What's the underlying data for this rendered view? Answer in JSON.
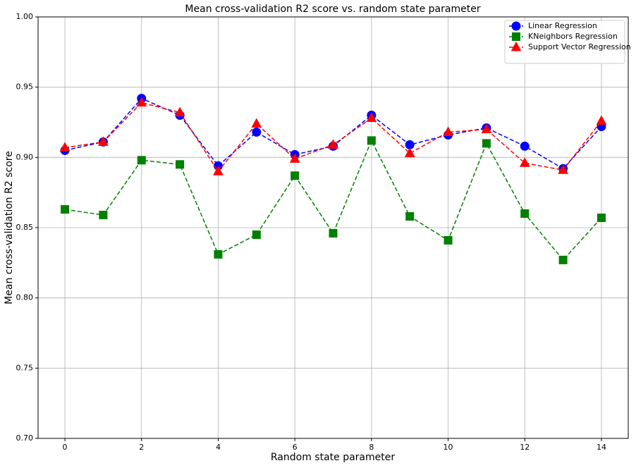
{
  "chart_data": {
    "type": "line",
    "title": "Mean cross-validation R2 score vs. random state parameter",
    "x_label": "Random state parameter",
    "y_label": "Mean cross-validation R2 score",
    "x": [
      0,
      1,
      2,
      3,
      4,
      5,
      6,
      7,
      8,
      9,
      10,
      11,
      12,
      13,
      14
    ],
    "series": [
      {
        "name": "Linear Regression",
        "color": "#0000ff",
        "marker": "circle",
        "values": [
          0.905,
          0.911,
          0.942,
          0.93,
          0.894,
          0.918,
          0.902,
          0.908,
          0.93,
          0.909,
          0.916,
          0.921,
          0.908,
          0.892,
          0.922
        ]
      },
      {
        "name": "KNeighbors Regression",
        "color": "#008000",
        "marker": "square",
        "values": [
          0.863,
          0.859,
          0.898,
          0.895,
          0.831,
          0.845,
          0.887,
          0.846,
          0.912,
          0.858,
          0.841,
          0.91,
          0.86,
          0.827,
          0.857
        ]
      },
      {
        "name": "Support Vector Regression",
        "color": "#ff0000",
        "marker": "triangle",
        "values": [
          0.907,
          0.911,
          0.939,
          0.932,
          0.89,
          0.924,
          0.899,
          0.909,
          0.928,
          0.903,
          0.918,
          0.92,
          0.896,
          0.891,
          0.926
        ]
      }
    ],
    "xlim": [
      -0.7,
      14.7
    ],
    "xticks": [
      0,
      2,
      4,
      6,
      8,
      10,
      12,
      14
    ],
    "ylim": [
      0.7,
      1.0
    ],
    "yticks": [
      {
        "value": 0.7,
        "label": "0.70"
      },
      0.75,
      {
        "value": 0.8,
        "label": "0.80"
      },
      0.85,
      {
        "value": 0.9,
        "label": "0.90"
      },
      0.95,
      {
        "value": 1.0,
        "label": "1.00"
      }
    ],
    "grid": true,
    "line_style": "dashed",
    "legend": "upper right"
  }
}
